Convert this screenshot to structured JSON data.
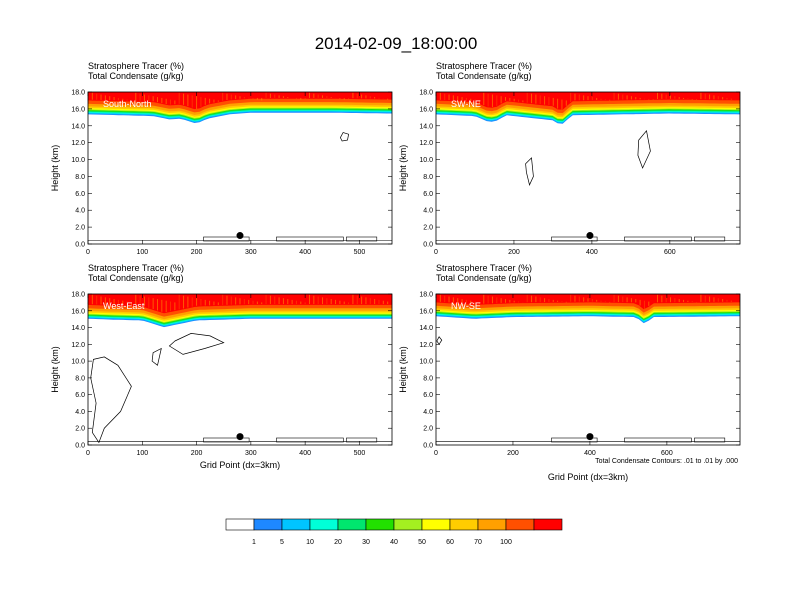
{
  "title": "2014-02-09_18:00:00",
  "colors": {
    "scale": [
      "#ffffff",
      "#1e88ff",
      "#00c4ff",
      "#00ffd8",
      "#00e66e",
      "#22e000",
      "#a4f020",
      "#ffff00",
      "#ffcc00",
      "#ffa000",
      "#ff5000",
      "#ff0000"
    ],
    "contour": "#000000",
    "marker": "#000000"
  },
  "colorbar": {
    "labels": [
      "1",
      "5",
      "10",
      "20",
      "30",
      "40",
      "50",
      "60",
      "70",
      "100"
    ]
  },
  "footnote": "Total Condensate Contours: .01 to .01 by .000",
  "chart_data": [
    {
      "type": "heatmap",
      "panel_label": "South-North",
      "series_label_1": "Stratosphere Tracer   (%)",
      "series_label_2": "Total Condensate   (g/kg)",
      "ylabel": "Height (km)",
      "xlabel": "",
      "xlim": [
        0,
        560
      ],
      "ylim": [
        0,
        18
      ],
      "xticks": [
        "0",
        "100",
        "200",
        "300",
        "400",
        "500"
      ],
      "yticks": [
        "0.0",
        "2.0",
        "4.0",
        "6.0",
        "8.0",
        "10.0",
        "12.0",
        "14.0",
        "16.0",
        "18.0"
      ],
      "tracer_base_km": [
        [
          0,
          15.9
        ],
        [
          120,
          15.7
        ],
        [
          150,
          15.3
        ],
        [
          170,
          15.4
        ],
        [
          200,
          14.8
        ],
        [
          220,
          15.4
        ],
        [
          260,
          15.9
        ],
        [
          300,
          16.1
        ],
        [
          450,
          16.1
        ],
        [
          560,
          16.0
        ]
      ],
      "marker_x": 280,
      "marker_y_km": 1.0
    },
    {
      "type": "heatmap",
      "panel_label": "SW-NE",
      "series_label_1": "Stratosphere Tracer   (%)",
      "series_label_2": "Total Condensate   (g/kg)",
      "ylabel": "Height (km)",
      "xlabel": "",
      "xlim": [
        0,
        780
      ],
      "ylim": [
        0,
        18
      ],
      "xticks": [
        "0",
        "200",
        "400",
        "600"
      ],
      "yticks": [
        "0.0",
        "2.0",
        "4.0",
        "6.0",
        "8.0",
        "10.0",
        "12.0",
        "14.0",
        "16.0",
        "18.0"
      ],
      "tracer_base_km": [
        [
          0,
          15.9
        ],
        [
          100,
          15.7
        ],
        [
          130,
          15.1
        ],
        [
          150,
          15.0
        ],
        [
          180,
          15.8
        ],
        [
          300,
          15.2
        ],
        [
          320,
          14.6
        ],
        [
          350,
          15.8
        ],
        [
          600,
          16.0
        ],
        [
          780,
          15.9
        ]
      ],
      "marker_x": 395,
      "marker_y_km": 1.0
    },
    {
      "type": "heatmap",
      "panel_label": "West-East",
      "series_label_1": "Stratosphere Tracer   (%)",
      "series_label_2": "Total Condensate   (g/kg)",
      "ylabel": "Height (km)",
      "xlabel": "Grid Point (dx=3km)",
      "xlim": [
        0,
        560
      ],
      "ylim": [
        0,
        18
      ],
      "xticks": [
        "0",
        "100",
        "200",
        "300",
        "400",
        "500"
      ],
      "yticks": [
        "0.0",
        "2.0",
        "4.0",
        "6.0",
        "8.0",
        "10.0",
        "12.0",
        "14.0",
        "16.0",
        "18.0"
      ],
      "tracer_base_km": [
        [
          0,
          15.6
        ],
        [
          40,
          15.5
        ],
        [
          100,
          15.4
        ],
        [
          120,
          15.0
        ],
        [
          140,
          14.6
        ],
        [
          170,
          15.0
        ],
        [
          200,
          15.4
        ],
        [
          300,
          15.6
        ],
        [
          560,
          15.6
        ]
      ],
      "marker_x": 280,
      "marker_y_km": 1.0
    },
    {
      "type": "heatmap",
      "panel_label": "NW-SE",
      "series_label_1": "Stratosphere Tracer   (%)",
      "series_label_2": "Total Condensate   (g/kg)",
      "ylabel": "Height (km)",
      "xlabel": "Grid Point (dx=3km)",
      "xlim": [
        0,
        790
      ],
      "ylim": [
        0,
        18
      ],
      "xticks": [
        "0",
        "200",
        "400",
        "600"
      ],
      "yticks": [
        "0.0",
        "2.0",
        "4.0",
        "6.0",
        "8.0",
        "10.0",
        "12.0",
        "14.0",
        "16.0",
        "18.0"
      ],
      "tracer_base_km": [
        [
          0,
          15.9
        ],
        [
          100,
          15.6
        ],
        [
          200,
          15.8
        ],
        [
          400,
          15.9
        ],
        [
          520,
          15.8
        ],
        [
          545,
          14.9
        ],
        [
          560,
          15.8
        ],
        [
          790,
          15.9
        ]
      ],
      "marker_x": 400,
      "marker_y_km": 1.0
    }
  ]
}
